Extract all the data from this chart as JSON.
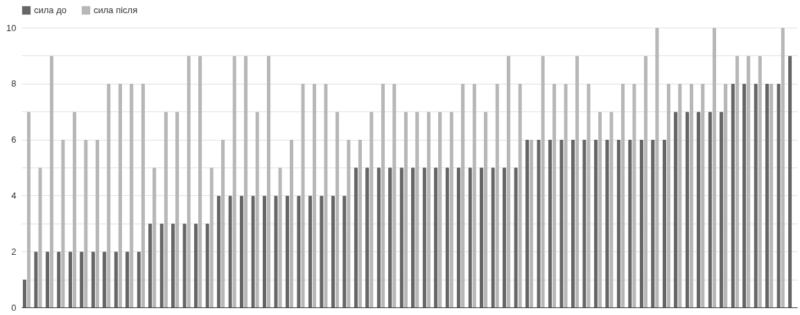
{
  "chart_data": {
    "type": "bar",
    "categories": [
      null,
      null,
      null,
      null,
      null,
      null,
      null,
      null,
      null,
      null,
      null,
      null,
      null,
      null,
      null,
      null,
      null,
      null,
      null,
      null,
      null,
      null,
      null,
      null,
      null,
      null,
      null,
      null,
      null,
      null,
      null,
      null,
      null,
      null,
      null,
      null,
      null,
      null,
      null,
      null,
      null,
      null,
      null,
      null,
      null,
      null,
      null,
      null,
      null,
      null,
      null,
      null,
      null,
      null,
      null,
      null,
      null,
      null,
      null,
      null,
      null,
      null,
      null,
      null,
      null,
      null,
      null,
      null
    ],
    "series": [
      {
        "name": "сила до",
        "color": "#666666",
        "values": [
          1,
          2,
          2,
          2,
          2,
          2,
          2,
          2,
          2,
          2,
          2,
          3,
          3,
          3,
          3,
          3,
          3,
          4,
          4,
          4,
          4,
          4,
          4,
          4,
          4,
          4,
          4,
          4,
          4,
          5,
          5,
          5,
          5,
          5,
          5,
          5,
          5,
          5,
          5,
          5,
          5,
          5,
          5,
          5,
          6,
          6,
          6,
          6,
          6,
          6,
          6,
          6,
          6,
          6,
          6,
          6,
          6,
          7,
          7,
          7,
          7,
          7,
          8,
          8,
          8,
          8,
          8,
          9
        ]
      },
      {
        "name": "сила після",
        "color": "#b7b7b7",
        "values": [
          7,
          5,
          9,
          6,
          7,
          6,
          6,
          8,
          8,
          8,
          8,
          5,
          7,
          7,
          9,
          9,
          5,
          6,
          9,
          9,
          7,
          9,
          5,
          6,
          8,
          8,
          8,
          7,
          6,
          6,
          7,
          8,
          8,
          7,
          7,
          7,
          7,
          7,
          8,
          8,
          7,
          8,
          9,
          8,
          6,
          9,
          8,
          8,
          9,
          8,
          7,
          7,
          8,
          8,
          9,
          10,
          8,
          8,
          8,
          8,
          10,
          8,
          9,
          9,
          9,
          8,
          10,
          null
        ]
      }
    ],
    "ylim": [
      0,
      10
    ],
    "yticks": [
      0,
      {
        "value": 1,
        "label": null
      },
      2,
      {
        "value": 3,
        "label": null
      },
      4,
      {
        "value": 5,
        "label": null
      },
      6,
      {
        "value": 7,
        "label": null
      },
      8,
      {
        "value": 9,
        "label": null
      },
      10
    ],
    "grid": "y",
    "legend": "top"
  }
}
